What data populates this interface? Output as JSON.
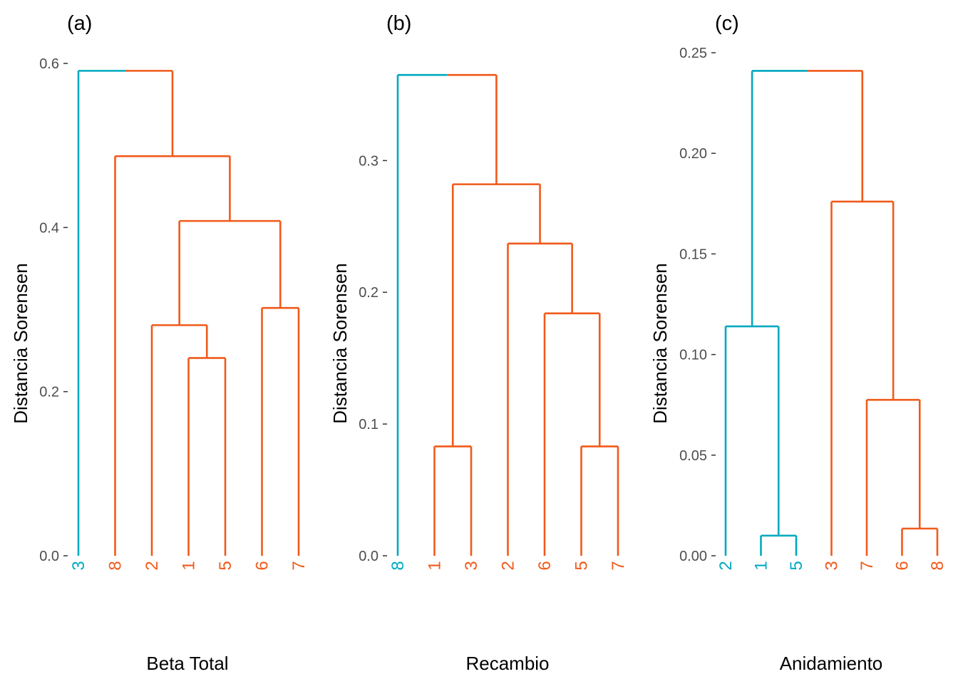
{
  "colors": {
    "cluster_a": "#00A9BF",
    "cluster_b": "#F05A1A",
    "tick": "#4d4d4d",
    "text": "#000000"
  },
  "chart_data": [
    {
      "type": "dendrogram",
      "panel_label": "(a)",
      "xlabel": "Beta Total",
      "ylabel": "Distancia Sorensen",
      "ylim": [
        0,
        0.6
      ],
      "yticks": [
        "0.0",
        "0.2",
        "0.4",
        "0.6"
      ],
      "ytick_values": [
        0,
        0.2,
        0.4,
        0.6
      ],
      "leaves": [
        {
          "label": "3",
          "cluster": "cluster_a"
        },
        {
          "label": "8",
          "cluster": "cluster_b"
        },
        {
          "label": "2",
          "cluster": "cluster_b"
        },
        {
          "label": "1",
          "cluster": "cluster_b"
        },
        {
          "label": "5",
          "cluster": "cluster_b"
        },
        {
          "label": "6",
          "cluster": "cluster_b"
        },
        {
          "label": "7",
          "cluster": "cluster_b"
        }
      ],
      "merges": [
        {
          "a": "1",
          "b": "5",
          "height": 0.241
        },
        {
          "a": "2",
          "b": "1+5",
          "height": 0.281
        },
        {
          "a": "6",
          "b": "7",
          "height": 0.302
        },
        {
          "a": "2+1+5",
          "b": "6+7",
          "height": 0.408
        },
        {
          "a": "8",
          "b": "2+1+5+6+7",
          "height": 0.487
        },
        {
          "a": "3",
          "b": "8+2+1+5+6+7",
          "height": 0.591
        }
      ]
    },
    {
      "type": "dendrogram",
      "panel_label": "(b)",
      "xlabel": "Recambio",
      "ylabel": "Distancia Sorensen",
      "ylim": [
        0,
        0.3678
      ],
      "yticks": [
        "0.0",
        "0.1",
        "0.2",
        "0.3"
      ],
      "ytick_values": [
        0,
        0.1,
        0.2,
        0.3
      ],
      "leaves": [
        {
          "label": "8",
          "cluster": "cluster_a"
        },
        {
          "label": "1",
          "cluster": "cluster_b"
        },
        {
          "label": "3",
          "cluster": "cluster_b"
        },
        {
          "label": "2",
          "cluster": "cluster_b"
        },
        {
          "label": "6",
          "cluster": "cluster_b"
        },
        {
          "label": "5",
          "cluster": "cluster_b"
        },
        {
          "label": "7",
          "cluster": "cluster_b"
        }
      ],
      "merges": [
        {
          "a": "1",
          "b": "3",
          "height": 0.083
        },
        {
          "a": "5",
          "b": "7",
          "height": 0.083
        },
        {
          "a": "6",
          "b": "5+7",
          "height": 0.184
        },
        {
          "a": "2",
          "b": "6+5+7",
          "height": 0.237
        },
        {
          "a": "1+3",
          "b": "2+6+5+7",
          "height": 0.282
        },
        {
          "a": "8",
          "b": "1+3+2+6+5+7",
          "height": 0.365
        }
      ]
    },
    {
      "type": "dendrogram",
      "panel_label": "(c)",
      "xlabel": "Anidamiento",
      "ylabel": "Distancia Sorensen",
      "ylim": [
        0,
        0.25
      ],
      "yticks": [
        "0.00",
        "0.05",
        "0.10",
        "0.15",
        "0.20",
        "0.25"
      ],
      "ytick_values": [
        0,
        0.05,
        0.1,
        0.15,
        0.2,
        0.25
      ],
      "leaves": [
        {
          "label": "2",
          "cluster": "cluster_a"
        },
        {
          "label": "1",
          "cluster": "cluster_a"
        },
        {
          "label": "5",
          "cluster": "cluster_a"
        },
        {
          "label": "3",
          "cluster": "cluster_b"
        },
        {
          "label": "7",
          "cluster": "cluster_b"
        },
        {
          "label": "6",
          "cluster": "cluster_b"
        },
        {
          "label": "8",
          "cluster": "cluster_b"
        }
      ],
      "merges": [
        {
          "a": "1",
          "b": "5",
          "height": 0.01
        },
        {
          "a": "2",
          "b": "1+5",
          "height": 0.114
        },
        {
          "a": "6",
          "b": "8",
          "height": 0.0135
        },
        {
          "a": "7",
          "b": "6+8",
          "height": 0.0775
        },
        {
          "a": "3",
          "b": "7+6+8",
          "height": 0.176
        },
        {
          "a": "2+1+5",
          "b": "3+7+6+8",
          "height": 0.241
        }
      ]
    }
  ]
}
